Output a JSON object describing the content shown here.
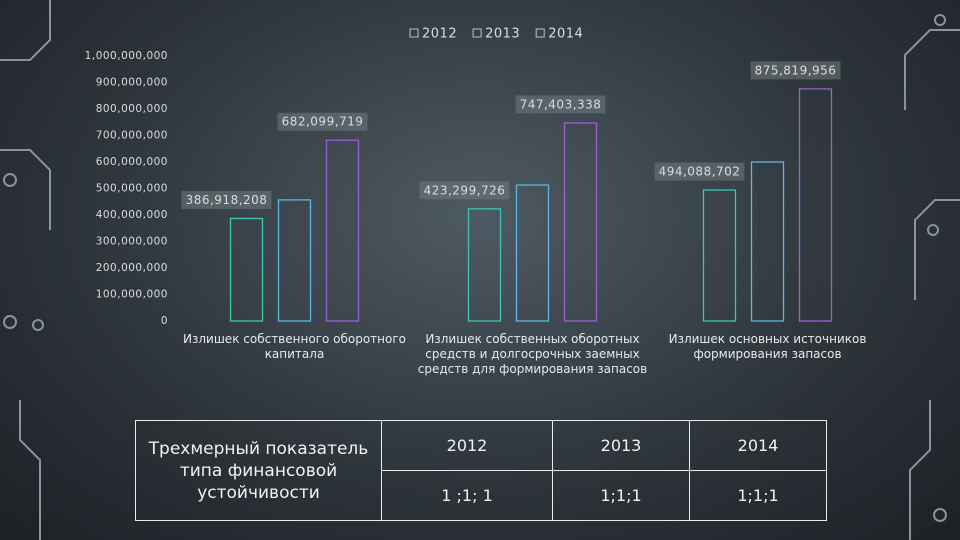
{
  "chart_data": {
    "type": "bar",
    "categories": [
      "Излишек собственного оборотного капитала",
      "Излишек  собственных оборотных средств и долгосрочных заемных средств для формирования запасов",
      "Излишек основных источников формирования запасов"
    ],
    "series": [
      {
        "name": "2012",
        "color": "#3cc6b8",
        "values": [
          386918208,
          423299726,
          494088702
        ],
        "value_labels": [
          "386,918,208",
          "423,299,726",
          "494,088,702"
        ]
      },
      {
        "name": "2013",
        "color": "#5bb8e0",
        "values": [
          457000000,
          513000000,
          600000000
        ]
      },
      {
        "name": "2014",
        "color": "#9b5fd6",
        "values": [
          682099719,
          747403338,
          875819956
        ],
        "value_labels": [
          "682,099,719",
          "747,403,338",
          "875,819,956"
        ]
      }
    ],
    "ylim": [
      0,
      1000000000
    ],
    "yticks": [
      0,
      {
        "value": 100000000,
        "label": "100,000,000"
      },
      {
        "value": 200000000,
        "label": "200,000,000"
      },
      {
        "value": 300000000,
        "label": "300,000,000"
      },
      {
        "value": 400000000,
        "label": "400,000,000"
      },
      {
        "value": 500000000,
        "label": "500,000,000"
      },
      {
        "value": 600000000,
        "label": "600,000,000"
      },
      {
        "value": 700000000,
        "label": "700,000,000"
      },
      {
        "value": 800000000,
        "label": "800,000,000"
      },
      {
        "value": 900000000,
        "label": "900,000,000"
      },
      {
        "value": 1000000000,
        "label": "1,000,000,000"
      }
    ]
  },
  "table": {
    "title": "Трехмерный показатель типа финансовой устойчивости",
    "header": [
      "2012",
      "2013",
      "2014"
    ],
    "rows": [
      [
        "1 ;1; 1",
        "1;1;1",
        "1;1;1"
      ]
    ]
  }
}
